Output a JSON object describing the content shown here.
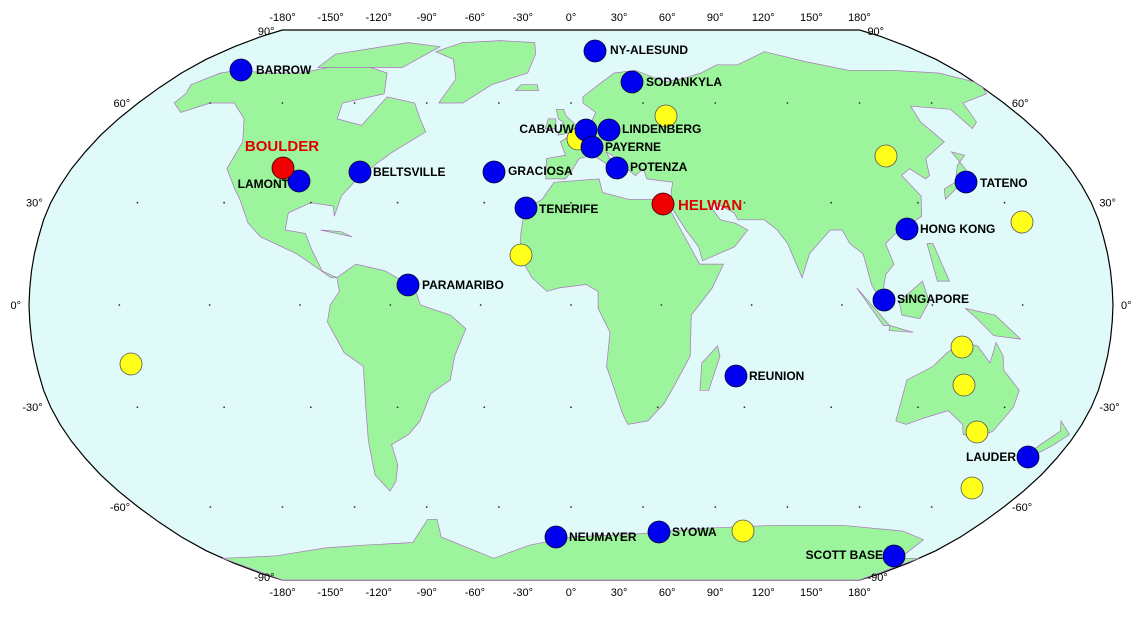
{
  "top_axis": [
    "-180°",
    "-150°",
    "-120°",
    "-90°",
    "-60°",
    "-30°",
    "0°",
    "30°",
    "60°",
    "90°",
    "120°",
    "150°",
    "180°"
  ],
  "bottom_axis": [
    "-180°",
    "-150°",
    "-120°",
    "-90°",
    "-60°",
    "-30°",
    "0°",
    "30°",
    "60°",
    "90°",
    "120°",
    "150°",
    "180°"
  ],
  "left_axis": [
    "90°",
    "60°",
    "30°",
    "0°",
    "-30°",
    "-60°",
    "-90°"
  ],
  "right_axis": [
    "90°",
    "60°",
    "30°",
    "0°",
    "-30°",
    "-60°",
    "-90°"
  ],
  "stations": [
    "BARROW",
    "NY-ALESUND",
    "SODANKYLA",
    "CABAUW",
    "LINDENBERG",
    "PAYERNE",
    "POTENZA",
    "GRACIOSA",
    "BELTSVILLE",
    "LAMONT",
    "TENERIFE",
    "TATENO",
    "HONG KONG",
    "PARAMARIBO",
    "SINGAPORE",
    "REUNION",
    "LAUDER",
    "NEUMAYER",
    "SYOWA",
    "SCOTT BASE"
  ],
  "highlighted_stations": [
    "BOULDER",
    "HELWAN"
  ]
}
